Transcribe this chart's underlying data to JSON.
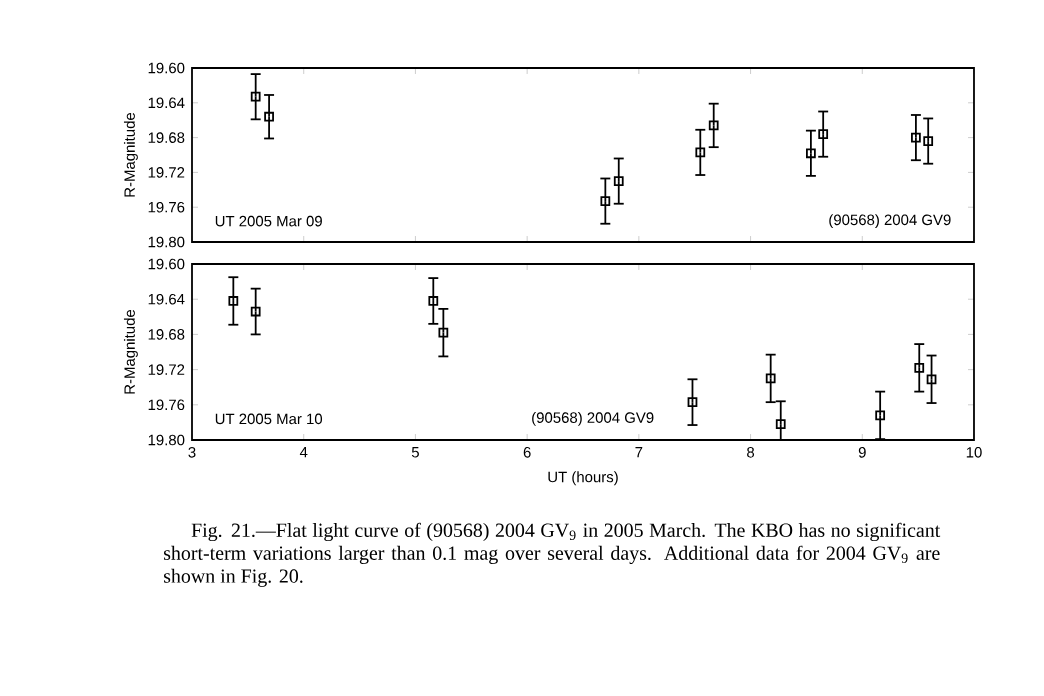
{
  "chart_data": [
    {
      "type": "scatter",
      "ylabel": "R-Magnitude",
      "marker": "square",
      "tick_labels": "y",
      "xlim": [
        3,
        10
      ],
      "ylim": [
        19.8,
        19.6
      ],
      "xticks": [
        3,
        4,
        5,
        6,
        7,
        8,
        9,
        10
      ],
      "yticks": [
        {
          "value": 19.6,
          "label": "19.60"
        },
        {
          "value": 19.64,
          "label": "19.64"
        },
        {
          "value": 19.68,
          "label": "19.68"
        },
        {
          "value": 19.72,
          "label": "19.72"
        },
        {
          "value": 19.76,
          "label": "19.76"
        },
        {
          "value": 19.8,
          "label": "19.80"
        }
      ],
      "annotations": [
        "UT 2005 Mar 09",
        "(90568) 2004 GV9"
      ],
      "series": [
        {
          "color": "#000000",
          "x": [
            3.57,
            3.69,
            6.7,
            6.82,
            7.55,
            7.67,
            8.54,
            8.65,
            9.48,
            9.59
          ],
          "values": [
            19.633,
            19.656,
            19.753,
            19.73,
            19.697,
            19.666,
            19.698,
            19.676,
            19.68,
            19.684
          ],
          "errors": [
            0.026,
            0.025,
            0.026,
            0.026,
            0.026,
            0.025,
            0.026,
            0.026,
            0.026,
            0.026
          ]
        }
      ]
    },
    {
      "type": "scatter",
      "xlabel": "UT (hours)",
      "ylabel": "R-Magnitude",
      "marker": "square",
      "xlim": [
        3,
        10
      ],
      "ylim": [
        19.8,
        19.6
      ],
      "xticks": [
        3,
        4,
        5,
        6,
        7,
        8,
        9,
        10
      ],
      "yticks": [
        {
          "value": 19.6,
          "label": "19.60"
        },
        {
          "value": 19.64,
          "label": "19.64"
        },
        {
          "value": 19.68,
          "label": "19.68"
        },
        {
          "value": 19.72,
          "label": "19.72"
        },
        {
          "value": 19.76,
          "label": "19.76"
        },
        {
          "value": 19.8,
          "label": "19.80"
        }
      ],
      "annotations": [
        "UT 2005 Mar 10",
        "(90568) 2004 GV9",
        "Fig. 21.—Flat light curve of (90568) 2004 GV$_{9}$ in 2005 March. The KBO has no significant short-term variations larger than 0.1 mag over several days. Additional data for 2004 GV$_{9}$ are shown in Fig. 20."
      ],
      "series": [
        {
          "color": "#000000",
          "x": [
            3.37,
            3.57,
            5.16,
            5.25,
            7.48,
            8.18,
            8.27,
            9.16,
            9.51,
            9.62
          ],
          "values": [
            19.642,
            19.654,
            19.642,
            19.678,
            19.757,
            19.73,
            19.782,
            19.772,
            19.718,
            19.731
          ],
          "errors": [
            0.027,
            0.026,
            0.026,
            0.027,
            0.026,
            0.027,
            [
              19.756,
              19.8
            ],
            0.027,
            0.027,
            0.027
          ]
        }
      ]
    }
  ]
}
